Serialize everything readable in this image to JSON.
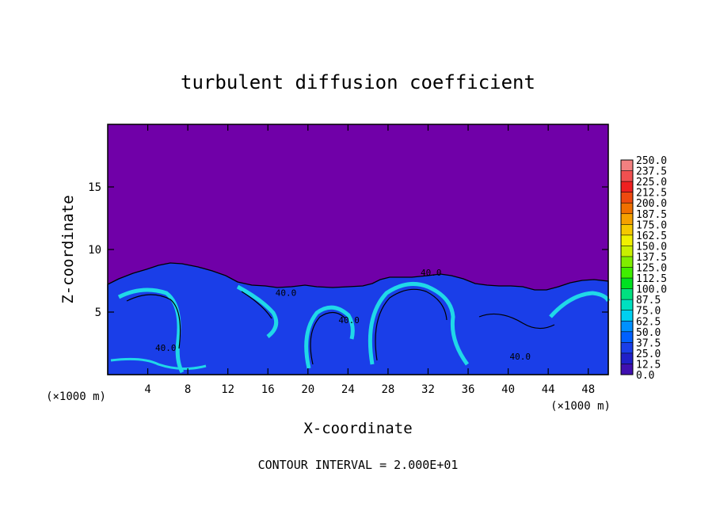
{
  "chart_data": {
    "type": "heatmap",
    "title": "turbulent diffusion coefficient",
    "xlabel": "X-coordinate",
    "ylabel": "Z-coordinate",
    "x_unit_left": "(×1000 m)",
    "x_unit_right": "(×1000 m)",
    "footer": "CONTOUR INTERVAL = 2.000E+01",
    "xlim": [
      0,
      50
    ],
    "ylim": [
      0,
      20
    ],
    "x_ticks": [
      4,
      8,
      12,
      16,
      20,
      24,
      28,
      32,
      36,
      40,
      44,
      48
    ],
    "y_ticks": [
      5,
      10,
      15
    ],
    "colorbar": {
      "labels": [
        "250.0",
        "237.5",
        "225.0",
        "212.5",
        "200.0",
        "187.5",
        "175.0",
        "162.5",
        "150.0",
        "137.5",
        "125.0",
        "112.5",
        "100.0",
        "87.5",
        "75.0",
        "62.5",
        "50.0",
        "37.5",
        "25.0",
        "12.5",
        "0.0"
      ],
      "colors": [
        "#f28080",
        "#f05050",
        "#ee2020",
        "#ee4a10",
        "#f07000",
        "#f5a000",
        "#f5c800",
        "#f0f000",
        "#c8f000",
        "#80ee00",
        "#40ee00",
        "#00e020",
        "#00e080",
        "#00e0c0",
        "#00d0f0",
        "#0090ff",
        "#0060ff",
        "#1a3ee8",
        "#2020c8",
        "#4010b0",
        "#7000a8"
      ]
    },
    "contour_labels": [
      {
        "text": "40.0",
        "x": 5.8,
        "z": 1.9
      },
      {
        "text": "40.0",
        "x": 17.8,
        "z": 6.3
      },
      {
        "text": "40.0",
        "x": 24.1,
        "z": 4.1
      },
      {
        "text": "40.0",
        "x": 32.3,
        "z": 7.9
      },
      {
        "text": "40.0",
        "x": 41.2,
        "z": 1.2
      }
    ],
    "colors": {
      "background_field": "#7000a8",
      "turbulent_layer": "#1a3ee8",
      "high_diffusion": "#20d8e8"
    }
  }
}
